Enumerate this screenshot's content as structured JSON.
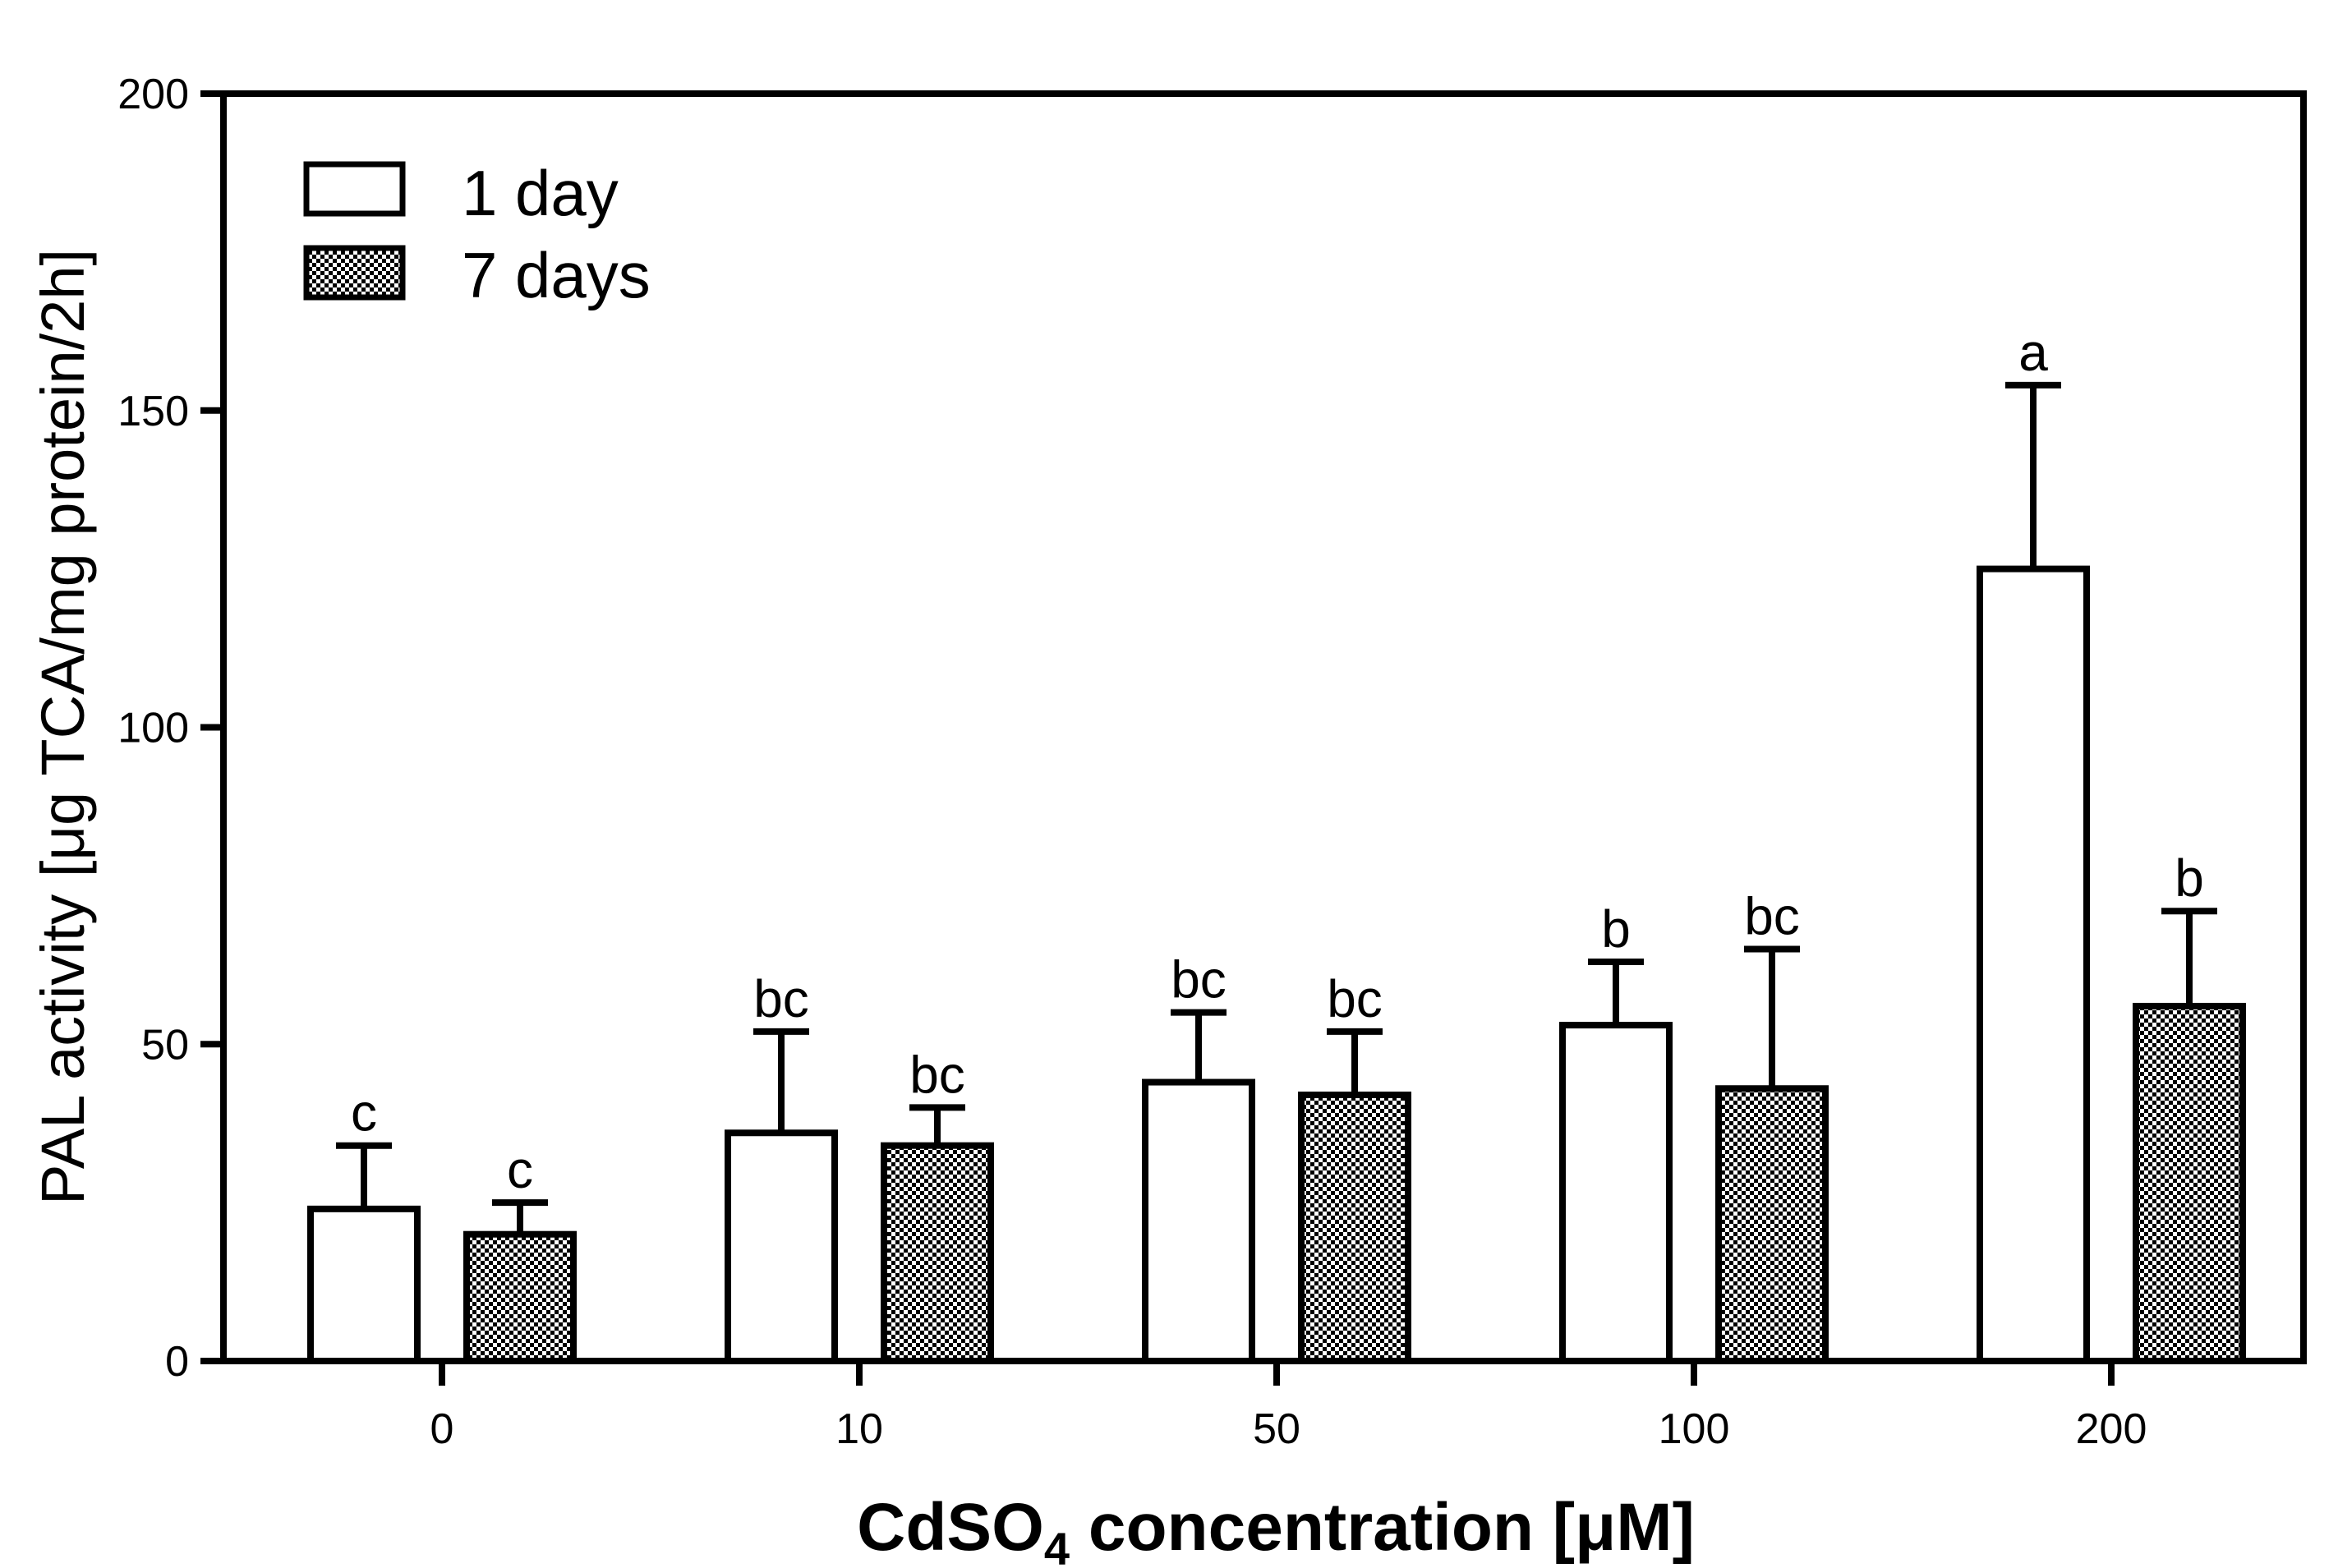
{
  "chart_data": {
    "type": "bar",
    "title": "",
    "xlabel_parts": {
      "pre": "CdSO",
      "sub": "4",
      "post": " concentration [μM]"
    },
    "ylabel": "PAL activity [μg TCA/mg protein/2h]",
    "ylim": [
      0,
      200
    ],
    "yticks": [
      "0",
      "50",
      "100",
      "150",
      "200"
    ],
    "categories": [
      "0",
      "10",
      "50",
      "100",
      "200"
    ],
    "series": [
      {
        "name": "1 day",
        "pattern": "open",
        "values": [
          24,
          36,
          44,
          53,
          125
        ],
        "errors": [
          10,
          16,
          11,
          10,
          29
        ],
        "labels": [
          "c",
          "bc",
          "bc",
          "b",
          "a"
        ]
      },
      {
        "name": "7 days",
        "pattern": "checkered",
        "values": [
          20,
          34,
          42,
          43,
          56
        ],
        "errors": [
          5,
          6,
          10,
          22,
          15
        ],
        "labels": [
          "c",
          "bc",
          "bc",
          "bc",
          "b"
        ]
      }
    ],
    "legend_position": "top-left",
    "grid": false
  }
}
